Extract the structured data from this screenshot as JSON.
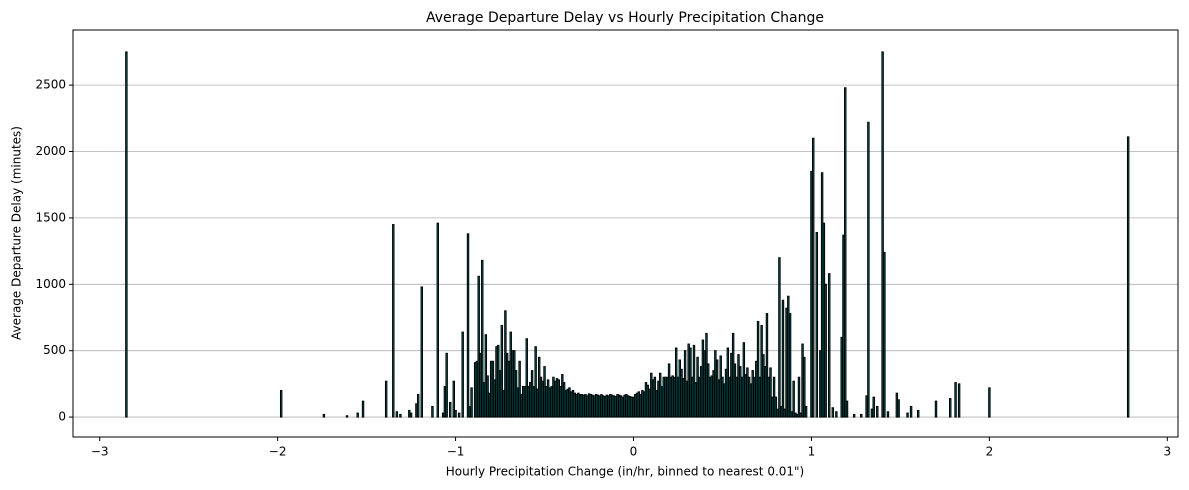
{
  "chart_data": {
    "type": "bar",
    "title": "Average Departure Delay vs Hourly Precipitation Change",
    "x_label": "Hourly Precipitation Change (in/hr, binned to nearest 0.01\")",
    "y_label": "Average Departure Delay (minutes)",
    "color": "#008080",
    "edge_color": "#000000",
    "grid": "y",
    "xlim": [
      -3.15,
      3.06
    ],
    "ylim": [
      -150,
      2915
    ],
    "xticks": [
      {
        "value": -3,
        "label": "−3"
      },
      {
        "value": -2,
        "label": "−2"
      },
      {
        "value": -1,
        "label": "−1"
      },
      0,
      1,
      2,
      3
    ],
    "yticks": [
      0,
      500,
      1000,
      1500,
      2000,
      2500
    ],
    "x": [
      -2.85,
      -1.98,
      -1.74,
      -1.61,
      -1.55,
      -1.52,
      -1.39,
      -1.35,
      -1.33,
      -1.31,
      -1.26,
      -1.25,
      -1.22,
      -1.21,
      -1.19,
      -1.13,
      -1.1,
      -1.07,
      -1.06,
      -1.05,
      -1.03,
      -1.01,
      -1.0,
      -0.98,
      -0.96,
      -0.93,
      -0.92,
      -0.91,
      -0.89,
      -0.88,
      -0.87,
      -0.86,
      -0.85,
      -0.84,
      -0.83,
      -0.82,
      -0.81,
      -0.8,
      -0.79,
      -0.78,
      -0.77,
      -0.76,
      -0.75,
      -0.74,
      -0.73,
      -0.72,
      -0.71,
      -0.7,
      -0.69,
      -0.68,
      -0.67,
      -0.66,
      -0.65,
      -0.64,
      -0.63,
      -0.62,
      -0.61,
      -0.6,
      -0.59,
      -0.58,
      -0.57,
      -0.56,
      -0.55,
      -0.54,
      -0.53,
      -0.52,
      -0.51,
      -0.5,
      -0.49,
      -0.48,
      -0.47,
      -0.46,
      -0.45,
      -0.44,
      -0.43,
      -0.42,
      -0.41,
      -0.4,
      -0.39,
      -0.38,
      -0.37,
      -0.36,
      -0.35,
      -0.34,
      -0.33,
      -0.32,
      -0.31,
      -0.3,
      -0.29,
      -0.28,
      -0.27,
      -0.26,
      -0.25,
      -0.24,
      -0.23,
      -0.22,
      -0.21,
      -0.2,
      -0.19,
      -0.18,
      -0.17,
      -0.16,
      -0.15,
      -0.14,
      -0.13,
      -0.12,
      -0.11,
      -0.1,
      -0.09,
      -0.08,
      -0.07,
      -0.06,
      -0.05,
      -0.04,
      -0.03,
      -0.02,
      -0.01,
      0.0,
      0.01,
      0.02,
      0.03,
      0.04,
      0.05,
      0.06,
      0.07,
      0.08,
      0.09,
      0.1,
      0.11,
      0.12,
      0.13,
      0.14,
      0.15,
      0.16,
      0.17,
      0.18,
      0.19,
      0.2,
      0.21,
      0.22,
      0.23,
      0.24,
      0.25,
      0.26,
      0.27,
      0.28,
      0.29,
      0.3,
      0.31,
      0.32,
      0.33,
      0.34,
      0.35,
      0.36,
      0.37,
      0.38,
      0.39,
      0.4,
      0.41,
      0.42,
      0.43,
      0.44,
      0.45,
      0.46,
      0.47,
      0.48,
      0.49,
      0.5,
      0.51,
      0.52,
      0.53,
      0.54,
      0.55,
      0.56,
      0.57,
      0.58,
      0.59,
      0.6,
      0.61,
      0.62,
      0.63,
      0.64,
      0.65,
      0.66,
      0.67,
      0.68,
      0.69,
      0.7,
      0.71,
      0.72,
      0.73,
      0.74,
      0.75,
      0.76,
      0.77,
      0.78,
      0.79,
      0.8,
      0.81,
      0.82,
      0.83,
      0.84,
      0.85,
      0.86,
      0.87,
      0.88,
      0.89,
      0.9,
      0.91,
      0.92,
      0.93,
      0.94,
      0.95,
      0.96,
      0.97,
      1.0,
      1.01,
      1.03,
      1.05,
      1.06,
      1.07,
      1.08,
      1.1,
      1.12,
      1.14,
      1.17,
      1.18,
      1.19,
      1.2,
      1.24,
      1.28,
      1.31,
      1.32,
      1.34,
      1.35,
      1.37,
      1.4,
      1.41,
      1.43,
      1.48,
      1.49,
      1.54,
      1.56,
      1.6,
      1.7,
      1.78,
      1.81,
      1.83,
      2.0,
      2.78
    ],
    "values": [
      2750,
      200,
      20,
      10,
      30,
      120,
      270,
      1450,
      40,
      20,
      50,
      30,
      100,
      170,
      980,
      80,
      1460,
      30,
      230,
      480,
      110,
      270,
      50,
      30,
      640,
      1380,
      80,
      220,
      410,
      420,
      1060,
      480,
      1180,
      260,
      620,
      310,
      180,
      420,
      420,
      280,
      530,
      540,
      350,
      690,
      200,
      800,
      480,
      420,
      640,
      500,
      500,
      350,
      220,
      420,
      170,
      230,
      230,
      590,
      230,
      260,
      350,
      230,
      530,
      210,
      450,
      300,
      270,
      380,
      230,
      280,
      220,
      230,
      300,
      270,
      290,
      280,
      230,
      320,
      260,
      200,
      210,
      220,
      190,
      200,
      180,
      170,
      180,
      170,
      170,
      165,
      170,
      160,
      175,
      170,
      165,
      160,
      170,
      165,
      160,
      170,
      160,
      155,
      165,
      160,
      170,
      165,
      160,
      155,
      170,
      165,
      160,
      150,
      165,
      170,
      160,
      155,
      150,
      150,
      170,
      180,
      190,
      170,
      200,
      190,
      260,
      240,
      210,
      330,
      280,
      300,
      200,
      270,
      330,
      230,
      300,
      300,
      300,
      400,
      300,
      310,
      300,
      520,
      300,
      430,
      360,
      290,
      500,
      270,
      550,
      520,
      300,
      540,
      260,
      450,
      300,
      380,
      580,
      500,
      630,
      400,
      300,
      310,
      350,
      500,
      430,
      280,
      460,
      300,
      250,
      360,
      520,
      300,
      480,
      630,
      400,
      300,
      470,
      380,
      300,
      560,
      320,
      370,
      300,
      250,
      350,
      300,
      420,
      720,
      300,
      690,
      470,
      380,
      780,
      300,
      370,
      150,
      300,
      150,
      60,
      1200,
      80,
      880,
      60,
      820,
      910,
      780,
      40,
      270,
      30,
      20,
      300,
      30,
      550,
      450,
      80,
      1850,
      2100,
      1390,
      500,
      1840,
      1460,
      1000,
      1080,
      70,
      40,
      600,
      1370,
      2480,
      120,
      20,
      20,
      160,
      2220,
      60,
      150,
      80,
      2750,
      1240,
      40,
      180,
      130,
      30,
      80,
      50,
      120,
      140,
      260,
      250,
      220,
      2110
    ]
  }
}
